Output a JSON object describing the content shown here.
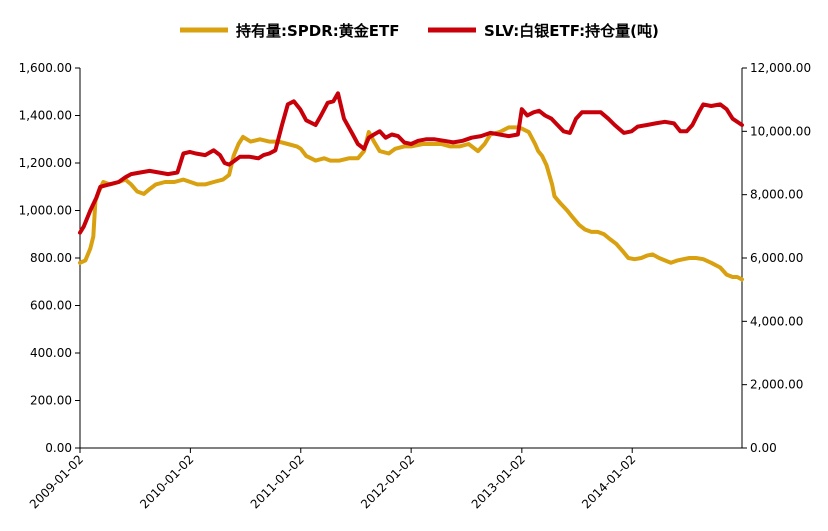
{
  "chart_data": {
    "type": "line",
    "x_axis": {
      "type": "date",
      "min": "2009-01-02",
      "max": "2014-12-31",
      "tick_labels": [
        "2009-01-02",
        "2010-01-02",
        "2011-01-02",
        "2012-01-02",
        "2013-01-02",
        "2014-01-02"
      ]
    },
    "y_left": {
      "min": 0,
      "max": 1600,
      "tick_labels": [
        "0.00",
        "200.00",
        "400.00",
        "600.00",
        "800.00",
        "1,000.00",
        "1,200.00",
        "1,400.00",
        "1,600.00"
      ]
    },
    "y_right": {
      "min": 0,
      "max": 12000,
      "tick_labels": [
        "0.00",
        "2,000.00",
        "4,000.00",
        "6,000.00",
        "8,000.00",
        "10,000.00",
        "12,000.00"
      ]
    },
    "grid": false,
    "legend_position": "top",
    "series": [
      {
        "name": "持有量:SPDR:黄金ETF",
        "axis": "left",
        "color": "#D9A010",
        "points": [
          [
            "2009-01-02",
            780
          ],
          [
            "2009-01-20",
            790
          ],
          [
            "2009-02-05",
            840
          ],
          [
            "2009-02-15",
            890
          ],
          [
            "2009-02-22",
            1040
          ],
          [
            "2009-03-05",
            1080
          ],
          [
            "2009-03-20",
            1120
          ],
          [
            "2009-04-10",
            1110
          ],
          [
            "2009-05-10",
            1120
          ],
          [
            "2009-06-01",
            1130
          ],
          [
            "2009-06-20",
            1110
          ],
          [
            "2009-07-10",
            1080
          ],
          [
            "2009-08-01",
            1070
          ],
          [
            "2009-08-20",
            1090
          ],
          [
            "2009-09-10",
            1110
          ],
          [
            "2009-10-10",
            1120
          ],
          [
            "2009-11-10",
            1120
          ],
          [
            "2009-12-10",
            1130
          ],
          [
            "2010-01-02",
            1120
          ],
          [
            "2010-01-25",
            1110
          ],
          [
            "2010-02-20",
            1110
          ],
          [
            "2010-03-20",
            1120
          ],
          [
            "2010-04-20",
            1130
          ],
          [
            "2010-05-10",
            1150
          ],
          [
            "2010-05-25",
            1230
          ],
          [
            "2010-06-10",
            1280
          ],
          [
            "2010-06-25",
            1310
          ],
          [
            "2010-07-20",
            1290
          ],
          [
            "2010-08-20",
            1300
          ],
          [
            "2010-09-20",
            1290
          ],
          [
            "2010-10-20",
            1290
          ],
          [
            "2010-11-20",
            1280
          ],
          [
            "2010-12-20",
            1270
          ],
          [
            "2011-01-02",
            1260
          ],
          [
            "2011-01-20",
            1230
          ],
          [
            "2011-02-20",
            1210
          ],
          [
            "2011-03-20",
            1220
          ],
          [
            "2011-04-10",
            1210
          ],
          [
            "2011-05-10",
            1210
          ],
          [
            "2011-06-10",
            1220
          ],
          [
            "2011-07-10",
            1220
          ],
          [
            "2011-07-30",
            1250
          ],
          [
            "2011-08-15",
            1330
          ],
          [
            "2011-09-01",
            1290
          ],
          [
            "2011-09-20",
            1250
          ],
          [
            "2011-10-20",
            1240
          ],
          [
            "2011-11-10",
            1260
          ],
          [
            "2011-12-10",
            1270
          ],
          [
            "2012-01-02",
            1270
          ],
          [
            "2012-02-10",
            1280
          ],
          [
            "2012-03-10",
            1280
          ],
          [
            "2012-04-10",
            1280
          ],
          [
            "2012-05-10",
            1270
          ],
          [
            "2012-06-10",
            1270
          ],
          [
            "2012-07-10",
            1280
          ],
          [
            "2012-08-10",
            1250
          ],
          [
            "2012-09-01",
            1280
          ],
          [
            "2012-09-20",
            1320
          ],
          [
            "2012-10-20",
            1330
          ],
          [
            "2012-11-20",
            1350
          ],
          [
            "2012-12-20",
            1350
          ],
          [
            "2013-01-02",
            1345
          ],
          [
            "2013-01-25",
            1330
          ],
          [
            "2013-02-15",
            1280
          ],
          [
            "2013-02-25",
            1250
          ],
          [
            "2013-03-10",
            1230
          ],
          [
            "2013-03-25",
            1190
          ],
          [
            "2013-04-12",
            1110
          ],
          [
            "2013-04-20",
            1060
          ],
          [
            "2013-05-10",
            1030
          ],
          [
            "2013-06-01",
            1000
          ],
          [
            "2013-06-20",
            970
          ],
          [
            "2013-07-10",
            940
          ],
          [
            "2013-07-30",
            920
          ],
          [
            "2013-08-20",
            910
          ],
          [
            "2013-09-10",
            910
          ],
          [
            "2013-10-01",
            900
          ],
          [
            "2013-10-20",
            880
          ],
          [
            "2013-11-10",
            860
          ],
          [
            "2013-12-01",
            830
          ],
          [
            "2013-12-20",
            800
          ],
          [
            "2014-01-10",
            795
          ],
          [
            "2014-02-01",
            800
          ],
          [
            "2014-02-20",
            810
          ],
          [
            "2014-03-10",
            815
          ],
          [
            "2014-04-01",
            800
          ],
          [
            "2014-04-20",
            790
          ],
          [
            "2014-05-10",
            780
          ],
          [
            "2014-06-01",
            790
          ],
          [
            "2014-06-20",
            795
          ],
          [
            "2014-07-10",
            800
          ],
          [
            "2014-08-01",
            800
          ],
          [
            "2014-08-25",
            795
          ],
          [
            "2014-09-20",
            780
          ],
          [
            "2014-10-20",
            760
          ],
          [
            "2014-11-10",
            730
          ],
          [
            "2014-11-30",
            720
          ],
          [
            "2014-12-15",
            720
          ],
          [
            "2014-12-31",
            710
          ]
        ]
      },
      {
        "name": "SLV:白银ETF:持仓量(吨)",
        "axis": "right",
        "color": "#C8000A",
        "points": [
          [
            "2009-01-02",
            6800
          ],
          [
            "2009-01-15",
            7000
          ],
          [
            "2009-02-05",
            7500
          ],
          [
            "2009-02-25",
            7900
          ],
          [
            "2009-03-10",
            8250
          ],
          [
            "2009-03-30",
            8300
          ],
          [
            "2009-04-20",
            8350
          ],
          [
            "2009-05-10",
            8400
          ],
          [
            "2009-06-01",
            8550
          ],
          [
            "2009-06-20",
            8650
          ],
          [
            "2009-07-20",
            8700
          ],
          [
            "2009-08-20",
            8750
          ],
          [
            "2009-09-20",
            8700
          ],
          [
            "2009-10-20",
            8650
          ],
          [
            "2009-11-20",
            8700
          ],
          [
            "2009-12-10",
            9300
          ],
          [
            "2009-12-31",
            9350
          ],
          [
            "2010-01-20",
            9300
          ],
          [
            "2010-02-20",
            9250
          ],
          [
            "2010-03-20",
            9400
          ],
          [
            "2010-04-10",
            9250
          ],
          [
            "2010-04-25",
            9000
          ],
          [
            "2010-05-10",
            8950
          ],
          [
            "2010-05-25",
            9050
          ],
          [
            "2010-06-15",
            9200
          ],
          [
            "2010-07-15",
            9200
          ],
          [
            "2010-08-15",
            9150
          ],
          [
            "2010-09-01",
            9250
          ],
          [
            "2010-09-20",
            9300
          ],
          [
            "2010-10-10",
            9400
          ],
          [
            "2010-11-01",
            10200
          ],
          [
            "2010-11-20",
            10850
          ],
          [
            "2010-12-10",
            10950
          ],
          [
            "2010-12-31",
            10700
          ],
          [
            "2011-01-20",
            10350
          ],
          [
            "2011-02-20",
            10200
          ],
          [
            "2011-03-10",
            10500
          ],
          [
            "2011-04-01",
            10900
          ],
          [
            "2011-04-20",
            10950
          ],
          [
            "2011-05-05",
            11200
          ],
          [
            "2011-05-25",
            10400
          ],
          [
            "2011-06-20",
            9950
          ],
          [
            "2011-07-10",
            9600
          ],
          [
            "2011-07-30",
            9450
          ],
          [
            "2011-08-15",
            9800
          ],
          [
            "2011-09-01",
            9900
          ],
          [
            "2011-09-20",
            10000
          ],
          [
            "2011-10-10",
            9800
          ],
          [
            "2011-10-30",
            9900
          ],
          [
            "2011-11-20",
            9850
          ],
          [
            "2011-12-10",
            9650
          ],
          [
            "2012-01-02",
            9600
          ],
          [
            "2012-01-25",
            9700
          ],
          [
            "2012-02-20",
            9750
          ],
          [
            "2012-03-20",
            9750
          ],
          [
            "2012-04-20",
            9700
          ],
          [
            "2012-05-20",
            9650
          ],
          [
            "2012-06-20",
            9700
          ],
          [
            "2012-07-20",
            9800
          ],
          [
            "2012-08-20",
            9850
          ],
          [
            "2012-09-20",
            9950
          ],
          [
            "2012-10-20",
            9900
          ],
          [
            "2012-11-20",
            9850
          ],
          [
            "2012-12-20",
            9900
          ],
          [
            "2013-01-02",
            10700
          ],
          [
            "2013-01-20",
            10500
          ],
          [
            "2013-02-10",
            10600
          ],
          [
            "2013-02-28",
            10650
          ],
          [
            "2013-03-20",
            10500
          ],
          [
            "2013-04-10",
            10400
          ],
          [
            "2013-04-30",
            10200
          ],
          [
            "2013-05-20",
            10000
          ],
          [
            "2013-06-10",
            9950
          ],
          [
            "2013-06-30",
            10400
          ],
          [
            "2013-07-20",
            10600
          ],
          [
            "2013-08-20",
            10600
          ],
          [
            "2013-09-20",
            10600
          ],
          [
            "2013-10-15",
            10400
          ],
          [
            "2013-11-05",
            10200
          ],
          [
            "2013-12-05",
            9950
          ],
          [
            "2013-12-31",
            10000
          ],
          [
            "2014-01-20",
            10150
          ],
          [
            "2014-02-20",
            10200
          ],
          [
            "2014-03-20",
            10250
          ],
          [
            "2014-04-20",
            10300
          ],
          [
            "2014-05-20",
            10250
          ],
          [
            "2014-06-10",
            10000
          ],
          [
            "2014-07-01",
            10000
          ],
          [
            "2014-07-20",
            10200
          ],
          [
            "2014-08-10",
            10600
          ],
          [
            "2014-08-25",
            10850
          ],
          [
            "2014-09-20",
            10800
          ],
          [
            "2014-10-20",
            10850
          ],
          [
            "2014-11-10",
            10700
          ],
          [
            "2014-11-30",
            10400
          ],
          [
            "2014-12-31",
            10200
          ]
        ]
      }
    ]
  }
}
